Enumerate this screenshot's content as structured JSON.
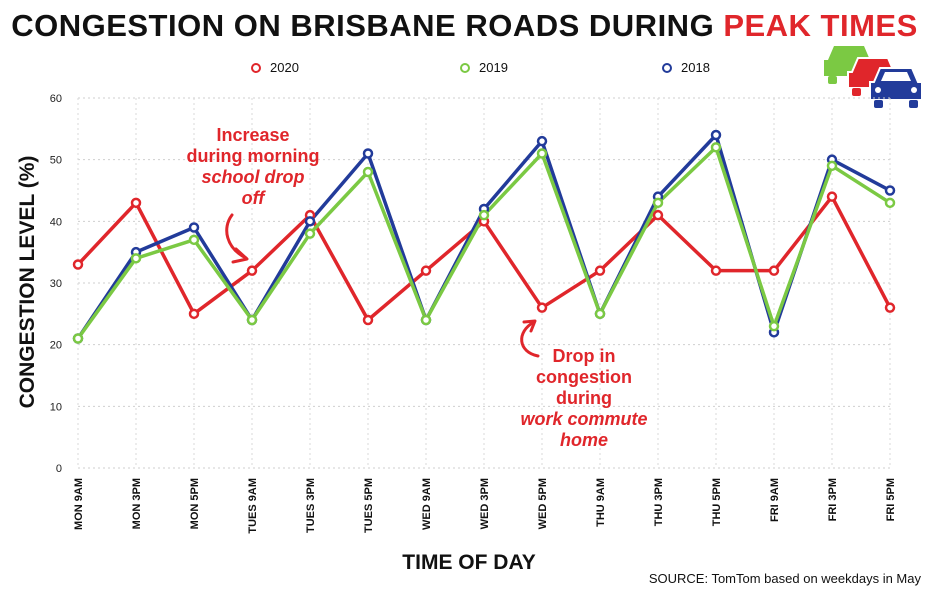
{
  "title": {
    "main": "CONGESTION ON BRISBANE ROADS DURING",
    "accent": "PEAK TIMES"
  },
  "colors": {
    "2020": "#e0262b",
    "2019": "#7bc943",
    "2018": "#223b9a",
    "accent": "#e0262b"
  },
  "annotations": [
    {
      "line1": "Increase",
      "line2": "during morning",
      "line3": "school drop",
      "line4": "off"
    },
    {
      "line1": "Drop in",
      "line2": "congestion",
      "line3": "during",
      "line4": "work commute",
      "line5": "home"
    }
  ],
  "source": "SOURCE: TomTom based on weekdays in May",
  "logo_icon": "cars-icon",
  "chart_data": {
    "type": "line",
    "title": "CONGESTION ON BRISBANE ROADS DURING PEAK TIMES",
    "xlabel": "TIME OF DAY",
    "ylabel": "CONGESTION LEVEL (%)",
    "ylim": [
      0,
      60
    ],
    "yticks": [
      0,
      10,
      20,
      30,
      40,
      50,
      60
    ],
    "grid": true,
    "legend_position": "top",
    "categories": [
      "MON 9AM",
      "MON 3PM",
      "MON 5PM",
      "TUES 9AM",
      "TUES 3PM",
      "TUES 5PM",
      "WED 9AM",
      "WED 3PM",
      "WED 5PM",
      "THU 9AM",
      "THU 3PM",
      "THU 5PM",
      "FRI 9AM",
      "FRI 3PM",
      "FRI 5PM"
    ],
    "series": [
      {
        "name": "2020",
        "color": "#e0262b",
        "values": [
          33,
          43,
          25,
          32,
          41,
          24,
          32,
          40,
          26,
          32,
          41,
          32,
          32,
          44,
          26
        ]
      },
      {
        "name": "2019",
        "color": "#7bc943",
        "values": [
          21,
          34,
          37,
          24,
          38,
          48,
          24,
          41,
          51,
          25,
          43,
          52,
          23,
          49,
          43
        ]
      },
      {
        "name": "2018",
        "color": "#223b9a",
        "values": [
          21,
          35,
          39,
          24,
          40,
          51,
          24,
          42,
          53,
          25,
          44,
          54,
          22,
          50,
          45
        ]
      }
    ]
  }
}
